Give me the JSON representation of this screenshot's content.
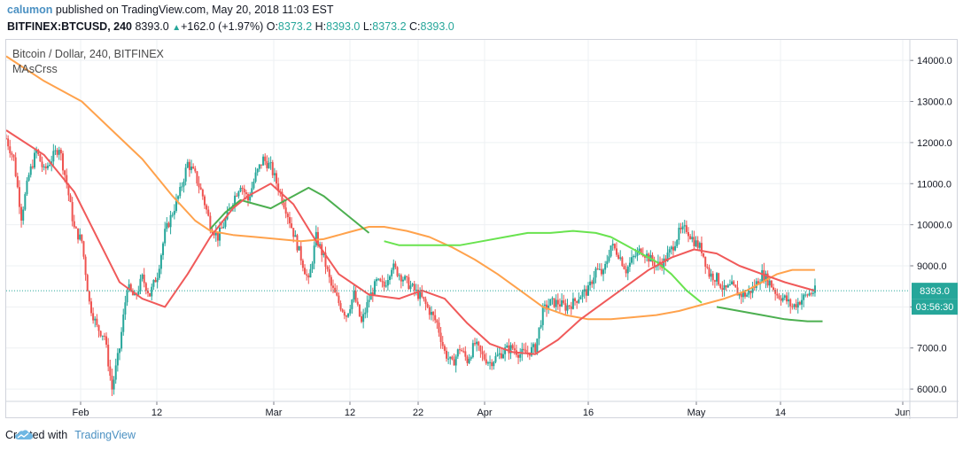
{
  "header": {
    "user": "calumon",
    "published_text": " published on TradingView.com, May 20, 2018 11:03 EST",
    "symbol": "BITFINEX:BTCUSD, 240",
    "last": "8393.0",
    "change": "+162.0 (+1.97%)",
    "o_label": "O:",
    "o_val": "8373.2",
    "h_label": "H:",
    "h_val": "8393.0",
    "l_label": "L:",
    "l_val": "8373.2",
    "c_label": "C:",
    "c_val": "8393.0"
  },
  "legend": {
    "title": "Bitcoin / Dollar, 240, BITFINEX",
    "indicator": "MAsCrss"
  },
  "footer": {
    "created_with": "Created with",
    "brand": "TradingView"
  },
  "chart_data": {
    "type": "candlestick",
    "y_ticks": [
      "14000.0",
      "13000.0",
      "12000.0",
      "11000.0",
      "10000.0",
      "9000.0",
      "8000.0",
      "7000.0",
      "6000.0"
    ],
    "y_range": [
      5700,
      14500
    ],
    "x_ticks": [
      "Feb",
      "12",
      "Mar",
      "12",
      "22",
      "Apr",
      "16",
      "May",
      "14",
      "Jun"
    ],
    "last_price_label": "8393.0",
    "last_price": 8393,
    "countdown_label": "03:56:30",
    "colors": {
      "up": "#26a69a",
      "down": "#ef5350",
      "ma_red": "#f05a5a",
      "ma_green_dark": "#4caf50",
      "ma_green_light": "#69e34f",
      "ma_orange": "#ffa24c",
      "price_box": "#26a69a"
    },
    "price_path": [
      [
        0,
        12100
      ],
      [
        2,
        11600
      ],
      [
        4,
        10200
      ],
      [
        6,
        11200
      ],
      [
        8,
        11800
      ],
      [
        10,
        11300
      ],
      [
        12,
        11600
      ],
      [
        14,
        11900
      ],
      [
        16,
        11000
      ],
      [
        18,
        9900
      ],
      [
        20,
        9600
      ],
      [
        22,
        8100
      ],
      [
        24,
        7500
      ],
      [
        26,
        7300
      ],
      [
        28,
        6000
      ],
      [
        30,
        7000
      ],
      [
        32,
        8500
      ],
      [
        34,
        8200
      ],
      [
        36,
        8700
      ],
      [
        38,
        8300
      ],
      [
        40,
        8800
      ],
      [
        42,
        9800
      ],
      [
        44,
        10300
      ],
      [
        46,
        10800
      ],
      [
        48,
        11500
      ],
      [
        50,
        11200
      ],
      [
        52,
        10700
      ],
      [
        54,
        10000
      ],
      [
        56,
        9700
      ],
      [
        58,
        10100
      ],
      [
        60,
        10600
      ],
      [
        62,
        11000
      ],
      [
        64,
        10600
      ],
      [
        66,
        11200
      ],
      [
        68,
        11600
      ],
      [
        70,
        11400
      ],
      [
        72,
        10900
      ],
      [
        74,
        10400
      ],
      [
        76,
        9800
      ],
      [
        78,
        9200
      ],
      [
        80,
        8600
      ],
      [
        82,
        9700
      ],
      [
        84,
        9200
      ],
      [
        86,
        8500
      ],
      [
        88,
        8100
      ],
      [
        90,
        7800
      ],
      [
        92,
        8300
      ],
      [
        94,
        7600
      ],
      [
        96,
        8200
      ],
      [
        98,
        8600
      ],
      [
        100,
        8500
      ],
      [
        102,
        9000
      ],
      [
        104,
        8800
      ],
      [
        106,
        8600
      ],
      [
        108,
        8400
      ],
      [
        110,
        8200
      ],
      [
        112,
        7900
      ],
      [
        114,
        7600
      ],
      [
        116,
        6900
      ],
      [
        118,
        6600
      ],
      [
        120,
        7000
      ],
      [
        122,
        6700
      ],
      [
        124,
        7100
      ],
      [
        126,
        6800
      ],
      [
        128,
        6650
      ],
      [
        130,
        6800
      ],
      [
        132,
        6950
      ],
      [
        134,
        7000
      ],
      [
        136,
        6850
      ],
      [
        138,
        6900
      ],
      [
        140,
        7000
      ],
      [
        142,
        7900
      ],
      [
        144,
        8100
      ],
      [
        146,
        8100
      ],
      [
        148,
        8000
      ],
      [
        150,
        8100
      ],
      [
        152,
        8300
      ],
      [
        154,
        8400
      ],
      [
        156,
        8900
      ],
      [
        158,
        8800
      ],
      [
        160,
        9500
      ],
      [
        162,
        9300
      ],
      [
        164,
        8900
      ],
      [
        166,
        9200
      ],
      [
        168,
        9400
      ],
      [
        170,
        9200
      ],
      [
        172,
        9000
      ],
      [
        174,
        9100
      ],
      [
        176,
        9400
      ],
      [
        178,
        9800
      ],
      [
        180,
        9900
      ],
      [
        182,
        9600
      ],
      [
        184,
        9400
      ],
      [
        186,
        8800
      ],
      [
        188,
        8700
      ],
      [
        190,
        8400
      ],
      [
        192,
        8500
      ],
      [
        194,
        8300
      ],
      [
        196,
        8300
      ],
      [
        198,
        8500
      ],
      [
        200,
        8800
      ],
      [
        202,
        8600
      ],
      [
        204,
        8300
      ],
      [
        206,
        8200
      ],
      [
        208,
        8000
      ],
      [
        210,
        8150
      ],
      [
        212,
        8300
      ],
      [
        214,
        8393
      ]
    ],
    "ma_red": [
      [
        0,
        12300
      ],
      [
        10,
        11700
      ],
      [
        18,
        10800
      ],
      [
        24,
        9700
      ],
      [
        30,
        8600
      ],
      [
        36,
        8200
      ],
      [
        42,
        8000
      ],
      [
        48,
        8800
      ],
      [
        54,
        9700
      ],
      [
        60,
        10400
      ],
      [
        64,
        10700
      ],
      [
        70,
        11000
      ],
      [
        76,
        10500
      ],
      [
        82,
        9600
      ],
      [
        88,
        8800
      ],
      [
        96,
        8300
      ],
      [
        104,
        8200
      ],
      [
        110,
        8400
      ],
      [
        116,
        8200
      ],
      [
        122,
        7600
      ],
      [
        128,
        7100
      ],
      [
        134,
        6900
      ],
      [
        140,
        6850
      ],
      [
        146,
        7200
      ],
      [
        152,
        7700
      ],
      [
        158,
        8100
      ],
      [
        164,
        8500
      ],
      [
        170,
        8900
      ],
      [
        176,
        9200
      ],
      [
        182,
        9400
      ],
      [
        188,
        9300
      ],
      [
        194,
        9000
      ],
      [
        200,
        8800
      ],
      [
        206,
        8600
      ],
      [
        214,
        8393
      ]
    ],
    "ma_green": [
      [
        54,
        9900
      ],
      [
        58,
        10300
      ],
      [
        62,
        10600
      ],
      [
        66,
        10500
      ],
      [
        70,
        10400
      ],
      [
        74,
        10600
      ],
      [
        78,
        10800
      ],
      [
        80,
        10900
      ],
      [
        84,
        10700
      ],
      [
        88,
        10400
      ],
      [
        92,
        10100
      ],
      [
        96,
        9800
      ],
      [
        100,
        9600
      ],
      [
        104,
        9500
      ],
      [
        108,
        9500
      ],
      [
        112,
        9500
      ],
      [
        116,
        9500
      ],
      [
        120,
        9500
      ],
      [
        126,
        9600
      ],
      [
        132,
        9700
      ],
      [
        138,
        9800
      ],
      [
        144,
        9800
      ],
      [
        150,
        9850
      ],
      [
        156,
        9800
      ],
      [
        160,
        9700
      ],
      [
        164,
        9500
      ],
      [
        168,
        9300
      ],
      [
        172,
        9100
      ],
      [
        176,
        8800
      ],
      [
        180,
        8400
      ],
      [
        184,
        8100
      ],
      [
        188,
        8000
      ],
      [
        194,
        7900
      ],
      [
        200,
        7800
      ],
      [
        206,
        7700
      ],
      [
        212,
        7650
      ],
      [
        216,
        7650
      ]
    ],
    "ma_orange": [
      [
        0,
        14100
      ],
      [
        10,
        13500
      ],
      [
        20,
        13000
      ],
      [
        28,
        12300
      ],
      [
        36,
        11600
      ],
      [
        44,
        10700
      ],
      [
        50,
        10100
      ],
      [
        54,
        9850
      ],
      [
        60,
        9750
      ],
      [
        66,
        9700
      ],
      [
        72,
        9650
      ],
      [
        78,
        9600
      ],
      [
        84,
        9650
      ],
      [
        90,
        9800
      ],
      [
        96,
        9950
      ],
      [
        100,
        9950
      ],
      [
        106,
        9850
      ],
      [
        112,
        9700
      ],
      [
        118,
        9450
      ],
      [
        124,
        9150
      ],
      [
        130,
        8800
      ],
      [
        136,
        8400
      ],
      [
        142,
        8000
      ],
      [
        148,
        7800
      ],
      [
        154,
        7700
      ],
      [
        160,
        7700
      ],
      [
        166,
        7750
      ],
      [
        172,
        7800
      ],
      [
        178,
        7900
      ],
      [
        184,
        8050
      ],
      [
        190,
        8200
      ],
      [
        196,
        8400
      ],
      [
        200,
        8600
      ],
      [
        204,
        8800
      ],
      [
        208,
        8900
      ],
      [
        214,
        8900
      ]
    ]
  }
}
